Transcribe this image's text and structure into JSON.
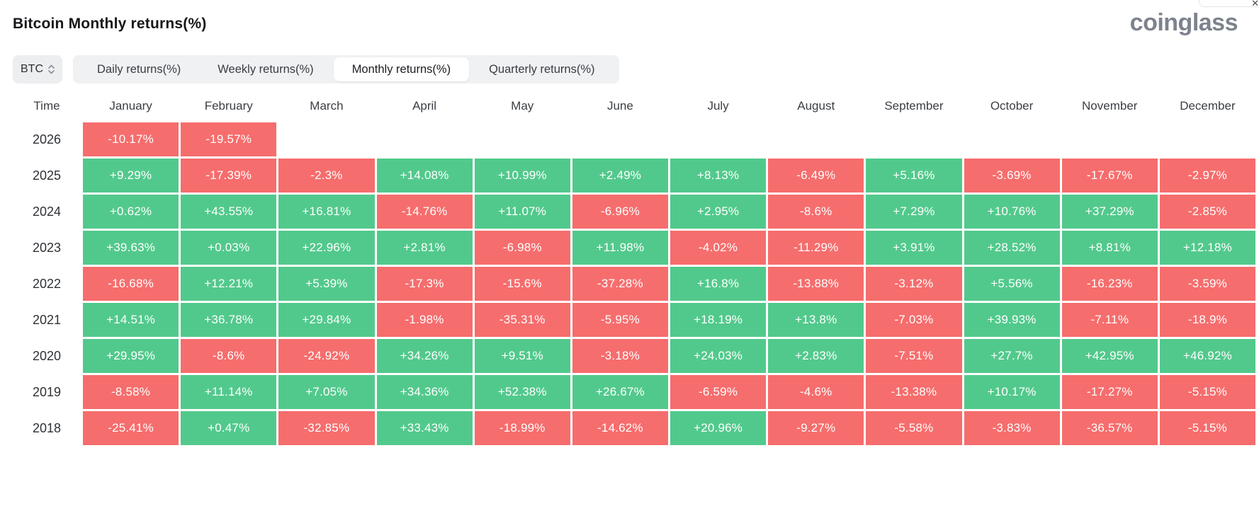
{
  "header": {
    "title": "Bitcoin Monthly returns(%)",
    "brand": "coinglass",
    "close_glyph": "✕"
  },
  "controls": {
    "symbol_select": {
      "value": "BTC"
    },
    "tabs": [
      {
        "label": "Daily returns(%)",
        "active": false
      },
      {
        "label": "Weekly returns(%)",
        "active": false
      },
      {
        "label": "Monthly returns(%)",
        "active": true
      },
      {
        "label": "Quarterly returns(%)",
        "active": false
      }
    ]
  },
  "colors": {
    "positive": "#52c98c",
    "negative": "#f66d6d"
  },
  "chart_data": {
    "type": "heatmap",
    "title": "Bitcoin Monthly returns(%)",
    "columns": [
      "Time",
      "January",
      "February",
      "March",
      "April",
      "May",
      "June",
      "July",
      "August",
      "September",
      "October",
      "November",
      "December"
    ],
    "rows": [
      {
        "year": "2026",
        "values": [
          "-10.17%",
          "-19.57%",
          "",
          "",
          "",
          "",
          "",
          "",
          "",
          "",
          "",
          ""
        ]
      },
      {
        "year": "2025",
        "values": [
          "+9.29%",
          "-17.39%",
          "-2.3%",
          "+14.08%",
          "+10.99%",
          "+2.49%",
          "+8.13%",
          "-6.49%",
          "+5.16%",
          "-3.69%",
          "-17.67%",
          "-2.97%"
        ]
      },
      {
        "year": "2024",
        "values": [
          "+0.62%",
          "+43.55%",
          "+16.81%",
          "-14.76%",
          "+11.07%",
          "-6.96%",
          "+2.95%",
          "-8.6%",
          "+7.29%",
          "+10.76%",
          "+37.29%",
          "-2.85%"
        ]
      },
      {
        "year": "2023",
        "values": [
          "+39.63%",
          "+0.03%",
          "+22.96%",
          "+2.81%",
          "-6.98%",
          "+11.98%",
          "-4.02%",
          "-11.29%",
          "+3.91%",
          "+28.52%",
          "+8.81%",
          "+12.18%"
        ]
      },
      {
        "year": "2022",
        "values": [
          "-16.68%",
          "+12.21%",
          "+5.39%",
          "-17.3%",
          "-15.6%",
          "-37.28%",
          "+16.8%",
          "-13.88%",
          "-3.12%",
          "+5.56%",
          "-16.23%",
          "-3.59%"
        ]
      },
      {
        "year": "2021",
        "values": [
          "+14.51%",
          "+36.78%",
          "+29.84%",
          "-1.98%",
          "-35.31%",
          "-5.95%",
          "+18.19%",
          "+13.8%",
          "-7.03%",
          "+39.93%",
          "-7.11%",
          "-18.9%"
        ]
      },
      {
        "year": "2020",
        "values": [
          "+29.95%",
          "-8.6%",
          "-24.92%",
          "+34.26%",
          "+9.51%",
          "-3.18%",
          "+24.03%",
          "+2.83%",
          "-7.51%",
          "+27.7%",
          "+42.95%",
          "+46.92%"
        ]
      },
      {
        "year": "2019",
        "values": [
          "-8.58%",
          "+11.14%",
          "+7.05%",
          "+34.36%",
          "+52.38%",
          "+26.67%",
          "-6.59%",
          "-4.6%",
          "-13.38%",
          "+10.17%",
          "-17.27%",
          "-5.15%"
        ]
      },
      {
        "year": "2018",
        "values": [
          "-25.41%",
          "+0.47%",
          "-32.85%",
          "+33.43%",
          "-18.99%",
          "-14.62%",
          "+20.96%",
          "-9.27%",
          "-5.58%",
          "-3.83%",
          "-36.57%",
          "-5.15%"
        ]
      }
    ]
  }
}
